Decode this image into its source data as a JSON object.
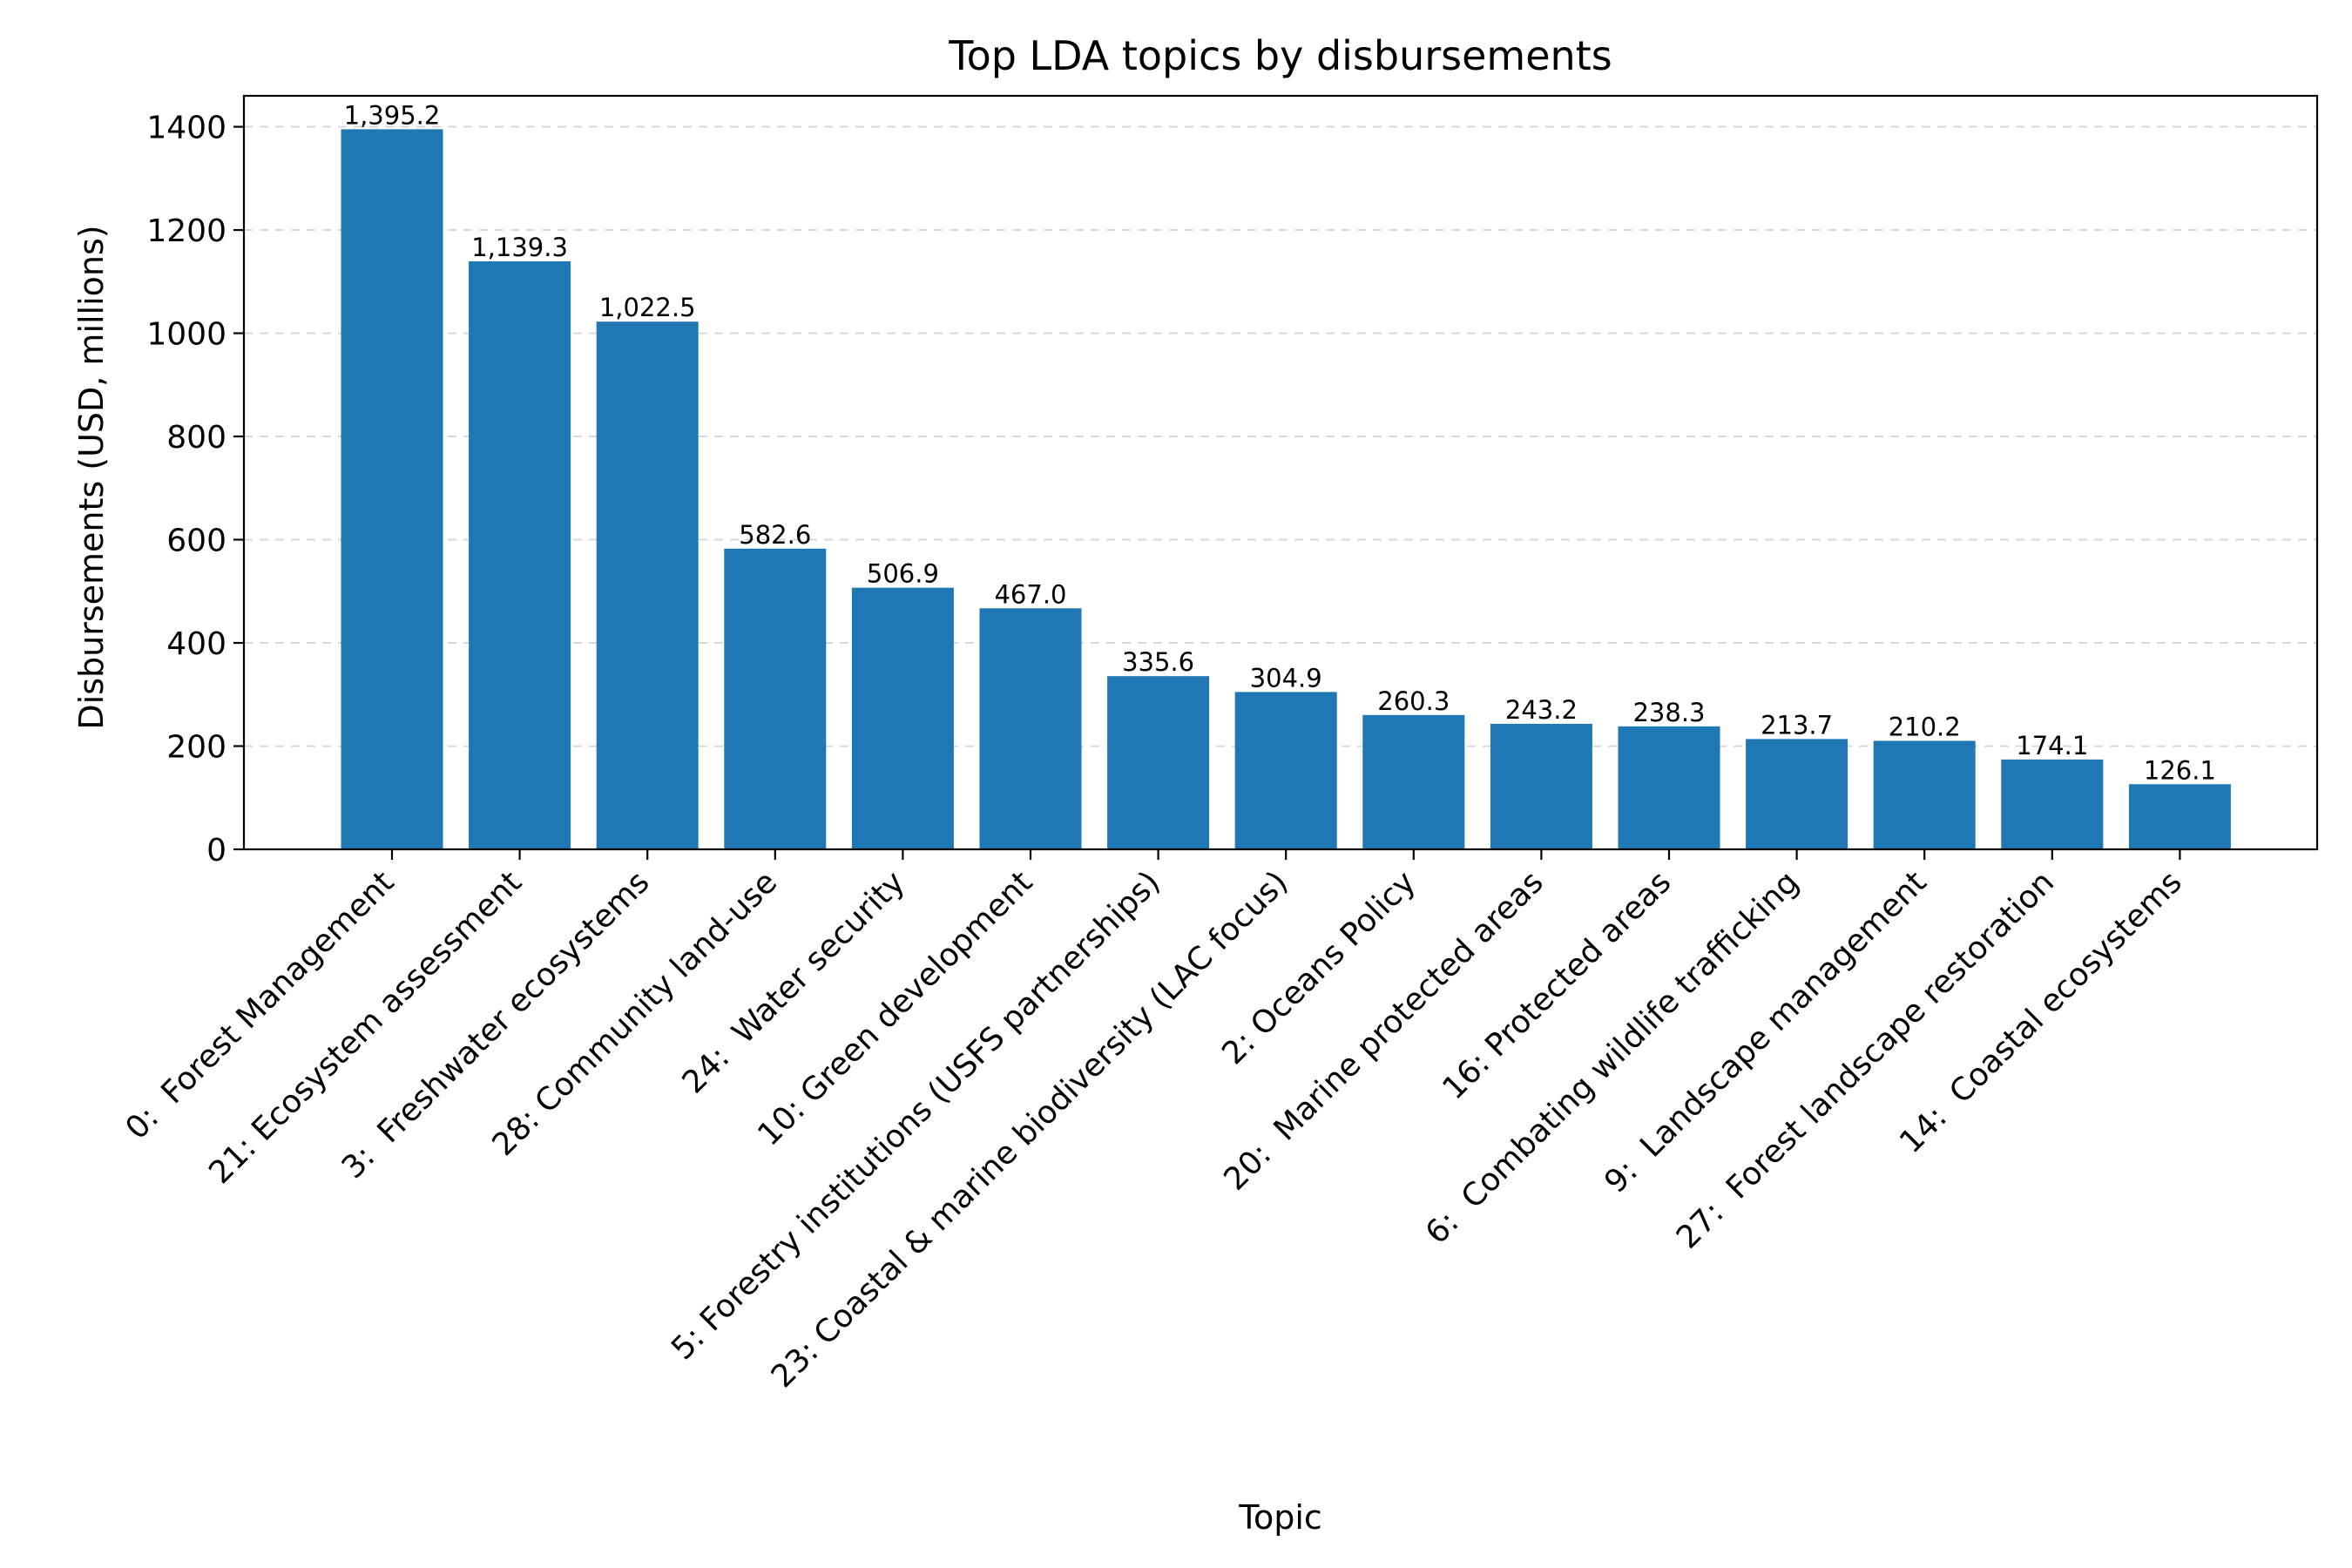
{
  "chart_data": {
    "type": "bar",
    "title": "Top LDA topics by disbursements",
    "xlabel": "Topic",
    "ylabel": "Disbursements (USD, millions)",
    "ylim": [
      0,
      1460
    ],
    "yticks": [
      0,
      200,
      400,
      600,
      800,
      1000,
      1200,
      1400
    ],
    "grid": "horizontal dashed",
    "bar_color": "#1f77b4",
    "categories": [
      "0:  Forest Management",
      "21: Ecosystem assessment",
      "3:  Freshwater ecosystems",
      "28: Community land-use",
      "24:  Water security",
      "10: Green development",
      "5: Forestry institutions (USFS partnerships)",
      "23: Coastal & marine biodiversity (LAC focus)",
      "2: Oceans Policy",
      "20:  Marine protected areas",
      "16: Protected areas",
      "6:  Combating wildlife trafficking",
      "9:  Landscape management",
      "27:  Forest landscape restoration",
      "14:  Coastal ecosystems"
    ],
    "values": [
      1395.2,
      1139.3,
      1022.5,
      582.6,
      506.9,
      467.0,
      335.6,
      304.9,
      260.3,
      243.2,
      238.3,
      213.7,
      210.2,
      174.1,
      126.1
    ],
    "data_labels": [
      "1,395.2",
      "1,139.3",
      "1,022.5",
      "582.6",
      "506.9",
      "467.0",
      "335.6",
      "304.9",
      "260.3",
      "243.2",
      "238.3",
      "213.7",
      "210.2",
      "174.1",
      "126.1"
    ]
  }
}
